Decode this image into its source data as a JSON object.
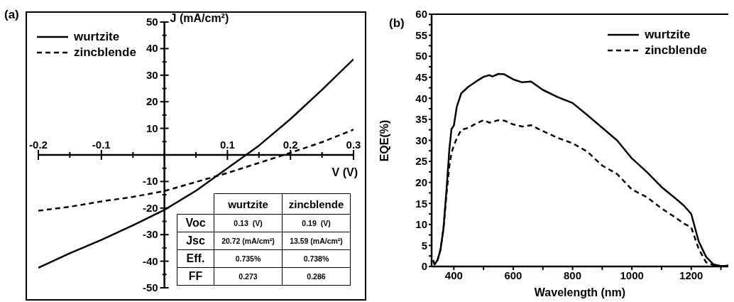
{
  "chart_data": [
    {
      "type": "line",
      "title": "(a)",
      "xlabel": "V (V)",
      "ylabel": "J (mA/cm²)",
      "legend": "top left",
      "x": [
        -0.2,
        -0.15,
        -0.1,
        -0.05,
        0,
        0.05,
        0.1,
        0.15,
        0.2,
        0.25,
        0.3
      ],
      "series": [
        {
          "name": "wurtzite",
          "color": "#000000",
          "line_style": "solid",
          "values": [
            -42.5,
            -37,
            -32,
            -26.5,
            -20.7,
            -13.5,
            -5,
            3.5,
            13.5,
            24.5,
            36
          ]
        },
        {
          "name": "zincblende",
          "color": "#000000",
          "line_style": "dashed",
          "values": [
            -21,
            -19.5,
            -17.5,
            -15.8,
            -13.6,
            -10.2,
            -6.8,
            -3,
            0.8,
            4.8,
            9.5
          ]
        }
      ],
      "xlim": [
        -0.2,
        0.3
      ],
      "xticks": [
        -0.2,
        {
          "value": -0.15,
          "label": null
        },
        -0.1,
        {
          "value": -0.05,
          "label": null
        },
        {
          "value": 0,
          "label": null
        },
        {
          "value": 0.05,
          "label": null
        },
        0.1,
        {
          "value": 0.15,
          "label": null
        },
        0.2,
        {
          "value": 0.25,
          "label": null
        },
        0.3
      ],
      "ylim": [
        -50,
        50
      ],
      "yticks": [
        -50,
        {
          "value": -45,
          "label": null
        },
        -40,
        {
          "value": -35,
          "label": null
        },
        -30,
        {
          "value": -25,
          "label": null
        },
        -20,
        {
          "value": -15,
          "label": null
        },
        -10,
        {
          "value": -5,
          "label": null
        },
        {
          "value": 0,
          "label": null
        },
        {
          "value": 5,
          "label": null
        },
        10,
        {
          "value": 15,
          "label": null
        },
        20,
        {
          "value": 25,
          "label": null
        },
        30,
        {
          "value": 35,
          "label": null
        },
        40,
        {
          "value": 45,
          "label": null
        },
        50
      ],
      "annotations": [
        "wurtzite",
        "zincblende",
        "Voc",
        "0.13  (V)",
        "0.19  (V)",
        "Jsc",
        "20.72 (mA/cm²)",
        "13.59 (mA/cm²)",
        "Eff.",
        "0.735%",
        "0.738%",
        "FF",
        "0.273",
        "0.286"
      ]
    },
    {
      "type": "line",
      "title": "(b)",
      "xlabel": "Wavelength (nm)",
      "ylabel": "EQE(%)",
      "legend": "top right",
      "x": [
        330,
        335,
        345,
        355,
        365,
        375,
        385,
        392,
        400,
        410,
        425,
        450,
        475,
        500,
        520,
        530,
        550,
        570,
        600,
        630,
        660,
        700,
        750,
        800,
        850,
        900,
        950,
        1000,
        1050,
        1100,
        1150,
        1175,
        1200,
        1225,
        1250,
        1275,
        1300,
        1325
      ],
      "series": [
        {
          "name": "wurtzite",
          "color": "#000000",
          "line_style": "solid",
          "values": [
            1.5,
            0.5,
            1.5,
            4,
            9,
            18,
            28,
            32.7,
            33.5,
            38,
            41.2,
            42.8,
            44,
            45.1,
            45.5,
            45.2,
            45.8,
            45.7,
            44.5,
            43.8,
            44,
            42,
            40.3,
            38.9,
            36,
            33,
            30,
            25.7,
            22.5,
            18.9,
            16,
            14.5,
            12.5,
            6,
            2.3,
            0.5,
            0.1,
            0.2
          ]
        },
        {
          "name": "zincblende",
          "color": "#000000",
          "line_style": "dashed",
          "values": [
            1.5,
            0.5,
            1.5,
            4,
            9,
            17,
            24,
            27,
            28.8,
            30.5,
            32.5,
            33,
            34,
            34.8,
            34.2,
            34.4,
            34.8,
            34.7,
            33.8,
            33.3,
            33.6,
            32.2,
            30.6,
            29.3,
            27.3,
            24,
            22,
            18.3,
            16.5,
            13.8,
            11.5,
            10.2,
            9.3,
            4.2,
            1,
            0.3,
            0.1,
            0.2
          ]
        }
      ],
      "xlim": [
        325,
        1325
      ],
      "xticks": [
        400,
        {
          "value": 500,
          "label": null
        },
        600,
        {
          "value": 700,
          "label": null
        },
        800,
        {
          "value": 900,
          "label": null
        },
        1000,
        {
          "value": 1100,
          "label": null
        },
        1200,
        {
          "value": 1300,
          "label": null
        }
      ],
      "ylim": [
        0,
        60
      ],
      "yticks": [
        0,
        {
          "value": 2.5,
          "label": null
        },
        5,
        {
          "value": 7.5,
          "label": null
        },
        10,
        {
          "value": 12.5,
          "label": null
        },
        15,
        {
          "value": 17.5,
          "label": null
        },
        20,
        {
          "value": 22.5,
          "label": null
        },
        25,
        {
          "value": 27.5,
          "label": null
        },
        30,
        {
          "value": 32.5,
          "label": null
        },
        35,
        {
          "value": 37.5,
          "label": null
        },
        40,
        {
          "value": 42.5,
          "label": null
        },
        45,
        {
          "value": 47.5,
          "label": null
        },
        50,
        {
          "value": 52.5,
          "label": null
        },
        55,
        {
          "value": 57.5,
          "label": null
        },
        60
      ]
    }
  ]
}
